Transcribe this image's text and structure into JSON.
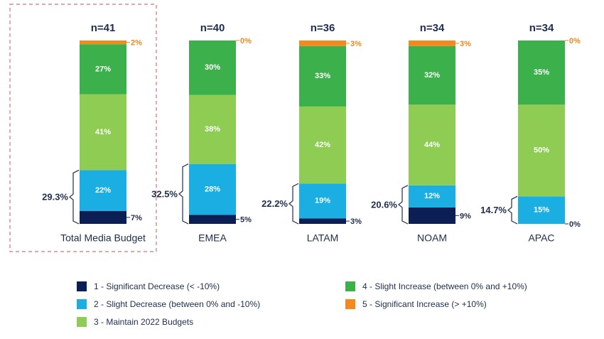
{
  "chart_data": {
    "type": "bar",
    "stacked": true,
    "orientation": "vertical",
    "categories": [
      "Total Media Budget",
      "EMEA",
      "LATAM",
      "NOAM",
      "APAC"
    ],
    "sample_sizes": [
      "n=41",
      "n=40",
      "n=36",
      "n=34",
      "n=34"
    ],
    "series": [
      {
        "name": "1 - Significant Decrease (< -10%)",
        "color": "#0c1f55",
        "values": [
          7,
          5,
          3,
          9,
          0
        ],
        "labels": [
          "7%",
          "5%",
          "3%",
          "9%",
          "0%"
        ]
      },
      {
        "name": "2 - Slight Decrease (between 0% and -10%)",
        "color": "#1aaee2",
        "values": [
          22,
          28,
          19,
          12,
          15
        ],
        "labels": [
          "22%",
          "28%",
          "19%",
          "12%",
          "15%"
        ]
      },
      {
        "name": "3 - Maintain 2022 Budgets",
        "color": "#8fcc54",
        "values": [
          41,
          38,
          42,
          44,
          50
        ],
        "labels": [
          "41%",
          "38%",
          "42%",
          "44%",
          "50%"
        ]
      },
      {
        "name": "4 - Slight Increase (between 0% and +10%)",
        "color": "#3cb04a",
        "values": [
          27,
          30,
          33,
          32,
          35
        ],
        "labels": [
          "27%",
          "30%",
          "33%",
          "32%",
          "35%"
        ]
      },
      {
        "name": "5 - Significant Increase (> +10%)",
        "color": "#f28a22",
        "values": [
          2,
          0,
          3,
          3,
          0
        ],
        "labels": [
          "2%",
          "0%",
          "3%",
          "3%",
          "0%"
        ]
      }
    ],
    "decrease_totals": [
      "29.3%",
      "32.5%",
      "22.2%",
      "20.6%",
      "14.7%"
    ],
    "highlighted_category": "Total Media Budget",
    "ylim": [
      0,
      100
    ],
    "legend_position": "bottom"
  },
  "colors": {
    "text_dark": "#1f2d4d",
    "orange_label": "#e8891f",
    "highlight_border": "#d9707a"
  }
}
